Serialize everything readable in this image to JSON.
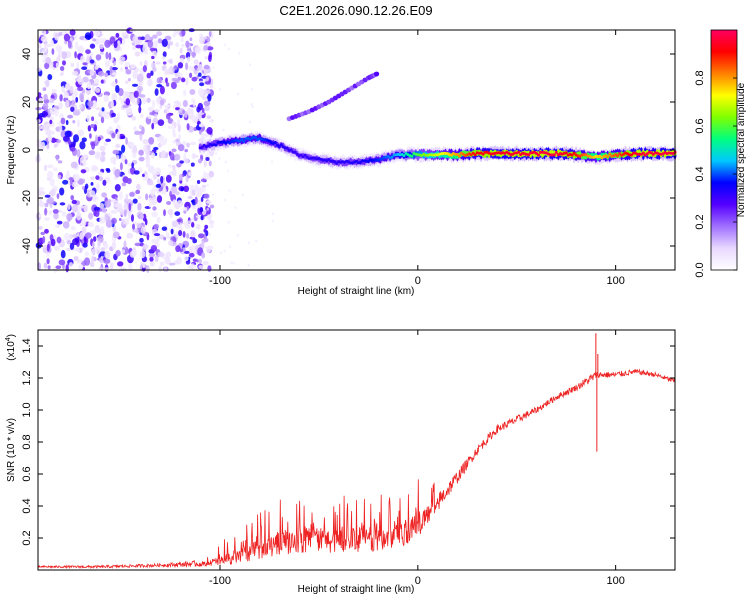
{
  "title": "C2E1.2026.090.12.26.E09",
  "chart_data": [
    {
      "type": "heatmap",
      "name": "spectrogram",
      "xlabel": "Height of straight line (km)",
      "ylabel": "Frequency (Hz)",
      "xlim": [
        -192,
        130
      ],
      "ylim": [
        -50,
        50
      ],
      "xticks": [
        -100,
        0,
        100
      ],
      "xtick_labels": [
        "-100",
        "0",
        "100"
      ],
      "yticks": [
        -40,
        -20,
        0,
        20,
        40
      ],
      "ytick_labels": [
        "-40",
        "-20",
        "0",
        "20",
        "40"
      ],
      "colorbar": {
        "label": "Normalized spectral amplitude",
        "range": [
          0,
          1
        ],
        "ticks": [
          0.0,
          0.2,
          0.4,
          0.6,
          0.8
        ],
        "tick_labels": [
          "0.0",
          "0.2",
          "0.4",
          "0.6",
          "0.8"
        ],
        "colors": [
          "#ffffff",
          "#e8d8ff",
          "#a070ff",
          "#5500ff",
          "#0000ff",
          "#00c8ff",
          "#00ff80",
          "#80ff00",
          "#ffff00",
          "#ff8000",
          "#ff0000",
          "#ff0060"
        ]
      },
      "noise_region_x": [
        -192,
        -110
      ],
      "main_trace": [
        {
          "x": -110,
          "y": 1,
          "a": 0.3
        },
        {
          "x": -100,
          "y": 3,
          "a": 0.35
        },
        {
          "x": -90,
          "y": 4,
          "a": 0.4
        },
        {
          "x": -80,
          "y": 5,
          "a": 0.4
        },
        {
          "x": -70,
          "y": 2,
          "a": 0.33
        },
        {
          "x": -60,
          "y": -2,
          "a": 0.3
        },
        {
          "x": -50,
          "y": -4,
          "a": 0.32
        },
        {
          "x": -40,
          "y": -5,
          "a": 0.32
        },
        {
          "x": -30,
          "y": -5,
          "a": 0.33
        },
        {
          "x": -20,
          "y": -4,
          "a": 0.38
        },
        {
          "x": -10,
          "y": -2,
          "a": 0.45
        },
        {
          "x": 0,
          "y": -2,
          "a": 0.6
        },
        {
          "x": 10,
          "y": -2,
          "a": 0.7
        },
        {
          "x": 20,
          "y": -2,
          "a": 0.8
        },
        {
          "x": 30,
          "y": -1.5,
          "a": 0.92
        },
        {
          "x": 50,
          "y": -1.5,
          "a": 0.95
        },
        {
          "x": 70,
          "y": -1.5,
          "a": 0.97
        },
        {
          "x": 80,
          "y": -2,
          "a": 0.9
        },
        {
          "x": 90,
          "y": -3,
          "a": 0.75
        },
        {
          "x": 100,
          "y": -2,
          "a": 0.85
        },
        {
          "x": 110,
          "y": -1.5,
          "a": 0.95
        },
        {
          "x": 130,
          "y": -1.5,
          "a": 0.97
        }
      ],
      "secondary_trace": [
        {
          "x": -65,
          "y": 13
        },
        {
          "x": -55,
          "y": 16
        },
        {
          "x": -45,
          "y": 20
        },
        {
          "x": -35,
          "y": 25
        },
        {
          "x": -25,
          "y": 30
        },
        {
          "x": -20,
          "y": 32
        }
      ]
    },
    {
      "type": "line",
      "name": "snr",
      "xlabel": "Height of straight line (km)",
      "ylabel": "SNR (10 * v/v)",
      "scale_label": "(x10",
      "scale_exp": "4",
      "scale_close": ")",
      "xlim": [
        -192,
        130
      ],
      "ylim": [
        0,
        1.5
      ],
      "xticks": [
        -100,
        0,
        100
      ],
      "xtick_labels": [
        "-100",
        "0",
        "100"
      ],
      "yticks": [
        0.2,
        0.4,
        0.6,
        0.8,
        1.0,
        1.2,
        1.4
      ],
      "ytick_labels": [
        "0.2",
        "0.4",
        "0.6",
        "0.8",
        "1.0",
        "1.2",
        "1.4"
      ],
      "line_color": "#ee2222",
      "series": [
        {
          "name": "SNR",
          "x": [
            -192,
            -160,
            -130,
            -110,
            -100,
            -90,
            -80,
            -70,
            -60,
            -50,
            -40,
            -30,
            -20,
            -10,
            0,
            10,
            20,
            30,
            40,
            50,
            60,
            70,
            80,
            88,
            90,
            92,
            100,
            110,
            120,
            130
          ],
          "y": [
            0.02,
            0.02,
            0.03,
            0.04,
            0.06,
            0.1,
            0.14,
            0.18,
            0.2,
            0.2,
            0.2,
            0.2,
            0.21,
            0.23,
            0.3,
            0.42,
            0.58,
            0.75,
            0.88,
            0.94,
            1.0,
            1.08,
            1.14,
            1.2,
            1.22,
            1.22,
            1.22,
            1.24,
            1.22,
            1.18
          ],
          "noise": [
            0.006,
            0.008,
            0.01,
            0.02,
            0.05,
            0.08,
            0.1,
            0.12,
            0.13,
            0.13,
            0.13,
            0.13,
            0.13,
            0.13,
            0.14,
            0.06,
            0.04,
            0.03,
            0.025,
            0.025,
            0.02,
            0.02,
            0.02,
            0.03,
            0.02,
            0.02,
            0.02,
            0.015,
            0.015,
            0.015
          ],
          "spikes": [
            {
              "x": 90,
              "y": 1.48
            },
            {
              "x": 90.5,
              "y": 0.74
            },
            {
              "x": 91,
              "y": 1.35
            }
          ]
        }
      ]
    }
  ]
}
